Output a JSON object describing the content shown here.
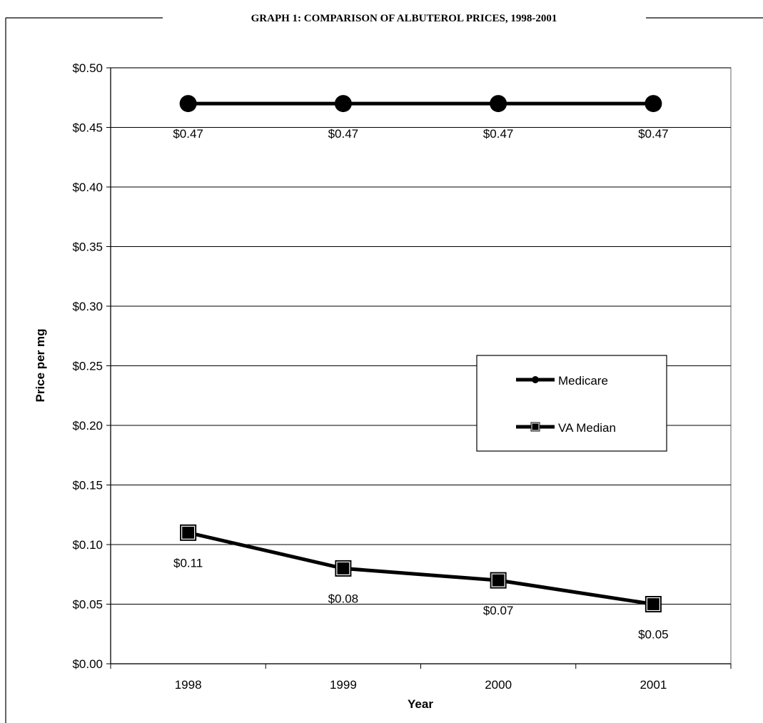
{
  "chart_data": {
    "type": "line",
    "title": "GRAPH 1: COMPARISON OF ALBUTEROL PRICES, 1998-2001",
    "xlabel": "Year",
    "ylabel": "Price per mg",
    "categories": [
      "1998",
      "1999",
      "2000",
      "2001"
    ],
    "ylim": [
      0,
      0.5
    ],
    "yticks": [
      0,
      0.05,
      0.1,
      0.15,
      0.2,
      0.25,
      0.3,
      0.35,
      0.4,
      0.45,
      0.5
    ],
    "ytick_labels": [
      "$0.00",
      "$0.05",
      "$0.10",
      "$0.15",
      "$0.20",
      "$0.25",
      "$0.30",
      "$0.35",
      "$0.40",
      "$0.45",
      "$0.50"
    ],
    "grid": "horizontal",
    "legend_position": "right-middle",
    "series": [
      {
        "name": "Medicare",
        "marker": "circle",
        "color": "#000000",
        "values": [
          0.47,
          0.47,
          0.47,
          0.47
        ],
        "labels": [
          "$0.47",
          "$0.47",
          "$0.47",
          "$0.47"
        ]
      },
      {
        "name": "VA Median",
        "marker": "square",
        "color": "#000000",
        "values": [
          0.11,
          0.08,
          0.07,
          0.05
        ],
        "labels": [
          "$0.11",
          "$0.08",
          "$0.07",
          "$0.05"
        ]
      }
    ]
  }
}
